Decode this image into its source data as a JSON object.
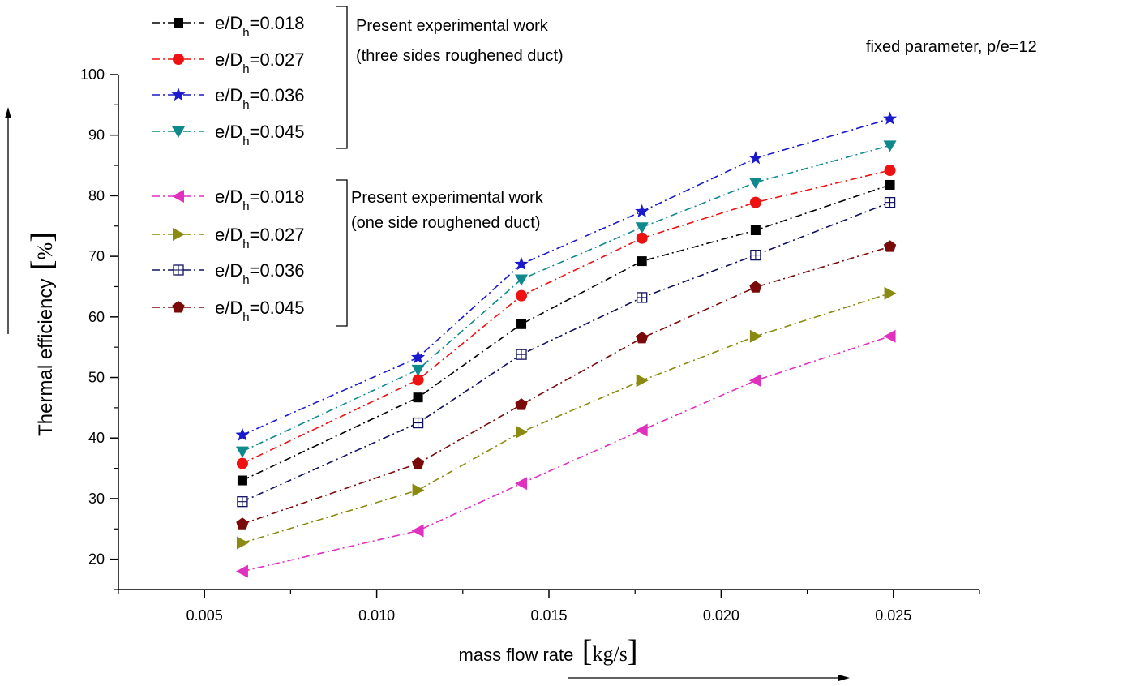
{
  "chart_data": {
    "type": "line",
    "xlabel": "mass flow rate",
    "xunit": "kg/s",
    "ylabel": "Thermal efficiency",
    "yunit": "%",
    "xlim": [
      0.0025,
      0.0275
    ],
    "ylim": [
      15,
      100
    ],
    "x_ticks": [
      "0.005",
      "0.010",
      "0.015",
      "0.020",
      "0.025"
    ],
    "y_ticks": [
      "20",
      "30",
      "40",
      "50",
      "60",
      "70",
      "80",
      "90",
      "100"
    ],
    "x": [
      0.0061,
      0.0112,
      0.0142,
      0.0177,
      0.021,
      0.0249
    ],
    "annotation": "fixed parameter, p/e=12",
    "groups": [
      {
        "title": "Present experimental work",
        "subtitle": "(three sides roughened duct)"
      },
      {
        "title": "Present experimental work",
        "subtitle": "(one side roughened duct)"
      }
    ],
    "legend_prefix": "e/D",
    "legend_sub": "h",
    "series": [
      {
        "name": "0.018",
        "group": 0,
        "color": "#000000",
        "marker": "square",
        "values": [
          33.0,
          46.7,
          58.8,
          69.2,
          74.3,
          81.8
        ]
      },
      {
        "name": "0.027",
        "group": 0,
        "color": "#ee1111",
        "marker": "circle",
        "values": [
          35.8,
          49.6,
          63.5,
          73.0,
          78.9,
          84.2
        ]
      },
      {
        "name": "0.036",
        "group": 0,
        "color": "#1a1acc",
        "marker": "star",
        "values": [
          40.5,
          53.3,
          68.7,
          77.4,
          86.2,
          92.7
        ]
      },
      {
        "name": "0.045",
        "group": 0,
        "color": "#10898e",
        "marker": "tri-down",
        "values": [
          37.8,
          51.3,
          66.2,
          74.8,
          82.2,
          88.3
        ]
      },
      {
        "name": "0.018",
        "group": 1,
        "color": "#e030c0",
        "marker": "tri-left",
        "values": [
          18.0,
          24.7,
          32.5,
          41.3,
          49.5,
          56.8
        ]
      },
      {
        "name": "0.027",
        "group": 1,
        "color": "#8a8a10",
        "marker": "tri-right",
        "values": [
          22.7,
          31.4,
          41.0,
          49.5,
          56.8,
          63.9
        ]
      },
      {
        "name": "0.036",
        "group": 1,
        "color": "#101060",
        "marker": "square-grid",
        "values": [
          29.5,
          42.5,
          53.8,
          63.2,
          70.2,
          78.9
        ]
      },
      {
        "name": "0.045",
        "group": 1,
        "color": "#7a0a0a",
        "marker": "pentagon",
        "values": [
          25.8,
          35.8,
          45.5,
          56.5,
          64.9,
          71.6
        ]
      }
    ]
  }
}
